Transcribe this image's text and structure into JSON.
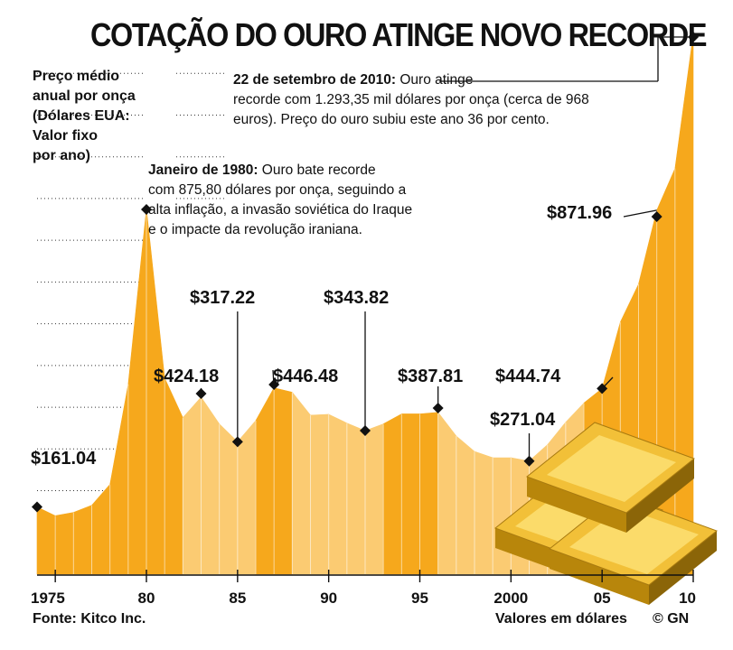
{
  "title": "COTAÇÃO DO OURO ATINGE NOVO RECORDE",
  "subtitle_lines": [
    "Preço médio",
    "anual por onça",
    "(Dólares EUA:",
    "Valor fixo",
    "por ano)"
  ],
  "annotations": {
    "a2010": {
      "date": "22 de setembro de 2010:",
      "line1_rest": " Ouro atinge",
      "line2": "recorde com 1.293,35 mil dólares por onça (cerca de 968",
      "line3": "euros). Preço do ouro subiu este ano 36 por cento."
    },
    "a1980": {
      "date": "Janeiro de 1980:",
      "line1_rest": " Ouro bate recorde",
      "line2": "com 875,80 dólares por onça, seguindo a",
      "line3": "alta inflação, a invasão soviética do Iraque",
      "line4": "e o impacte da revolução iraniana."
    }
  },
  "footer": {
    "source": "Fonte: Kitco Inc.",
    "units": "Valores em dólares",
    "credit": "© GN"
  },
  "colors": {
    "area_dark": "#F6A81C",
    "area_light": "#FBCB72",
    "divider": "#FFFFFF",
    "marker": "#111111",
    "axis": "#111111",
    "gridline": "#333333"
  },
  "chart_data": {
    "type": "area",
    "title": "COTAÇÃO DO OURO ATINGE NOVO RECORDE",
    "xlabel": "",
    "ylabel": "",
    "x": [
      1974,
      1975,
      1976,
      1977,
      1978,
      1979,
      1980,
      1981,
      1982,
      1983,
      1984,
      1985,
      1986,
      1987,
      1988,
      1989,
      1990,
      1991,
      1992,
      1993,
      1994,
      1995,
      1996,
      1997,
      1998,
      1999,
      2000,
      2001,
      2002,
      2003,
      2004,
      2005,
      2006,
      2007,
      2008,
      2009,
      2010
    ],
    "values": [
      161.04,
      140,
      148,
      165,
      215,
      455,
      875.8,
      470,
      375,
      424.18,
      360,
      317.22,
      368,
      446.48,
      436,
      381,
      383,
      362,
      343.82,
      360,
      384,
      384,
      387.81,
      331,
      294,
      279,
      279,
      271.04,
      310,
      364,
      410,
      444.74,
      604,
      695,
      871.96,
      972,
      1293.35
    ],
    "labelled_points": [
      {
        "x": 1974,
        "label": "$161.04"
      },
      {
        "x": 1983,
        "label": "$424.18"
      },
      {
        "x": 1985,
        "label": "$317.22"
      },
      {
        "x": 1987,
        "label": "$446.48"
      },
      {
        "x": 1992,
        "label": "$343.82"
      },
      {
        "x": 1996,
        "label": "$387.81"
      },
      {
        "x": 2001,
        "label": "$271.04"
      },
      {
        "x": 2005,
        "label": "$444.74"
      },
      {
        "x": 2008,
        "label": "$871.96"
      }
    ],
    "light_ranges": [
      [
        1982,
        1986
      ],
      [
        1988,
        1993
      ],
      [
        1996,
        2004
      ]
    ],
    "tick_values": [
      1975,
      1980,
      1985,
      1990,
      1995,
      2000,
      2005,
      2010
    ],
    "tick_labels": [
      "1975",
      "80",
      "85",
      "90",
      "95",
      "2000",
      "05",
      "10"
    ],
    "xlim": [
      1974,
      2010
    ],
    "ylim": [
      0,
      1300
    ],
    "grid": true
  }
}
